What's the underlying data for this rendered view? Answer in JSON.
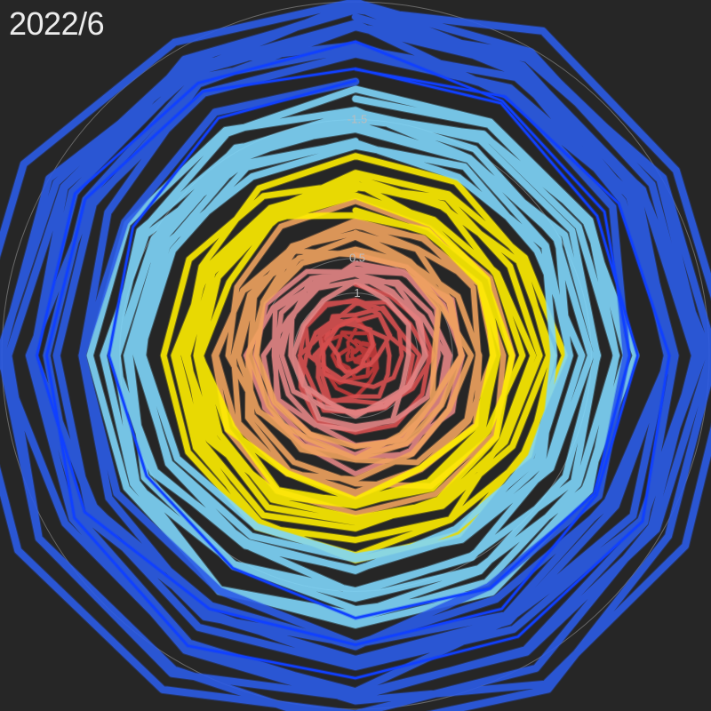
{
  "title": "2022/6",
  "chart_data": {
    "type": "line",
    "subtype": "polar-spiral",
    "title": "2022/6",
    "radial_axis": {
      "ticks": [
        {
          "value": 1,
          "label": "1"
        },
        {
          "value": 0.5,
          "label": "0.5"
        },
        {
          "value": -1.5,
          "label": "-1.5"
        }
      ],
      "range": [
        -3.2,
        1.9
      ],
      "direction": "decreasing outward",
      "grid": true
    },
    "angular_axis": {
      "period": 12,
      "unit": "month",
      "labels_shown": false
    },
    "series": [
      {
        "color": "#2b5ce8",
        "level": -2.8,
        "spread": 0.75
      },
      {
        "color": "#7fd6fa",
        "level": -1.55,
        "spread": 0.55
      },
      {
        "color": "#ffee00",
        "level": -0.55,
        "spread": 0.5
      },
      {
        "color": "#f0a25e",
        "level": 0.15,
        "spread": 0.5
      },
      {
        "color": "#e48585",
        "level": 0.7,
        "spread": 0.45
      },
      {
        "color": "#d85050",
        "level": 1.25,
        "spread": 0.45
      },
      {
        "color": "#c63a3a",
        "level": 1.7,
        "spread": 0.35
      }
    ],
    "highlight": {
      "color": "#1040ff",
      "level": -2.3
    },
    "legend": "none"
  }
}
